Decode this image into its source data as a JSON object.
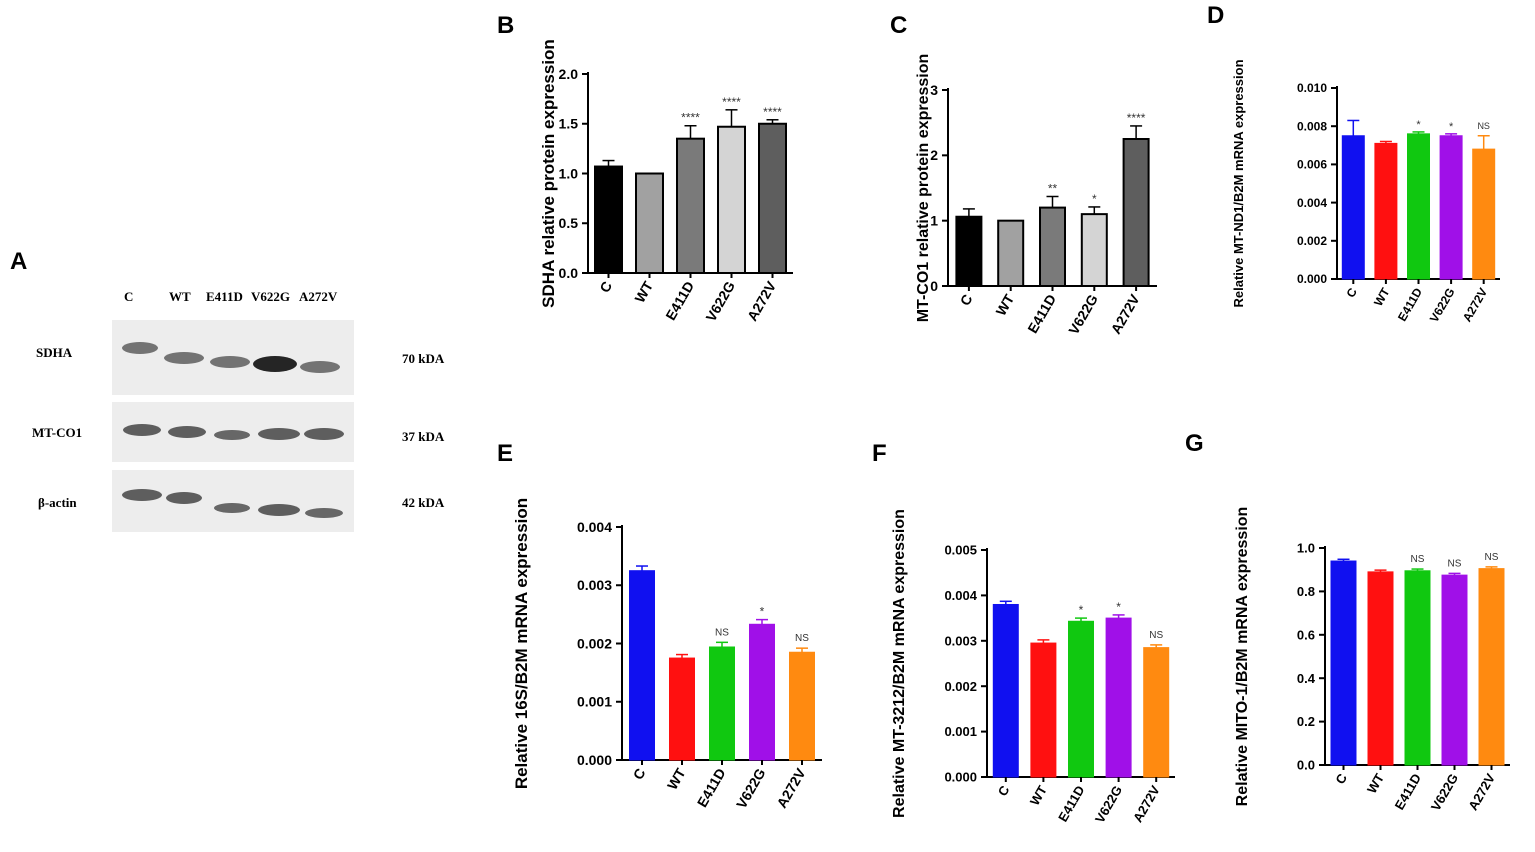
{
  "panels": {
    "A": "A",
    "B": "B",
    "C": "C",
    "D": "D",
    "E": "E",
    "F": "F",
    "G": "G"
  },
  "western_blot": {
    "lanes": [
      "C",
      "WT",
      "E411D",
      "V622G",
      "A272V"
    ],
    "proteins": [
      {
        "name": "SDHA",
        "size": "70 kDA",
        "intensities": [
          0.55,
          0.55,
          0.6,
          0.9,
          0.62
        ]
      },
      {
        "name": "MT-CO1",
        "size": "37 kDA",
        "intensities": [
          0.65,
          0.6,
          0.55,
          0.62,
          0.6
        ]
      },
      {
        "name": "β-actin",
        "size": "42 kDA",
        "intensities": [
          0.6,
          0.65,
          0.5,
          0.55,
          0.52
        ]
      }
    ]
  },
  "chart_data": [
    {
      "id": "B",
      "type": "bar",
      "ylabel": "SDHA relative protein expression",
      "categories": [
        "C",
        "WT",
        "E411D",
        "V622G",
        "A272V"
      ],
      "values": [
        1.07,
        1.0,
        1.35,
        1.47,
        1.5
      ],
      "errors": [
        0.06,
        0.0,
        0.13,
        0.17,
        0.04
      ],
      "annotations": [
        "",
        "",
        "****",
        "****",
        "****"
      ],
      "ylim": [
        0,
        2.0
      ],
      "ticks": [
        0,
        0.5,
        1.0,
        1.5,
        2.0
      ],
      "tick_labels": [
        "0.0",
        "0.5",
        "1.0",
        "1.5",
        "2.0"
      ],
      "colors": [
        "#000000",
        "#a1a1a1",
        "#7a7a7a",
        "#d4d4d4",
        "#5e5e5e"
      ]
    },
    {
      "id": "C",
      "type": "bar",
      "ylabel": "MT-CO1 relative protein expression",
      "categories": [
        "C",
        "WT",
        "E411D",
        "V622G",
        "A272V"
      ],
      "values": [
        1.06,
        1.0,
        1.2,
        1.1,
        2.25
      ],
      "errors": [
        0.12,
        0.0,
        0.17,
        0.11,
        0.2
      ],
      "annotations": [
        "",
        "",
        "**",
        "*",
        "****"
      ],
      "ylim": [
        0,
        3
      ],
      "ticks": [
        0,
        1,
        2,
        3
      ],
      "tick_labels": [
        "0",
        "1",
        "2",
        "3"
      ],
      "colors": [
        "#000000",
        "#a1a1a1",
        "#7a7a7a",
        "#d4d4d4",
        "#5e5e5e"
      ]
    },
    {
      "id": "D",
      "type": "bar",
      "ylabel": "Relative MT-ND1/B2M mRNA expression",
      "categories": [
        "C",
        "WT",
        "E411D",
        "V622G",
        "A272V"
      ],
      "values": [
        0.0075,
        0.0071,
        0.0076,
        0.0075,
        0.0068
      ],
      "errors": [
        0.0008,
        0.0001,
        0.0001,
        0.0001,
        0.0007
      ],
      "annotations": [
        "",
        "",
        "*",
        "*",
        "NS"
      ],
      "ylim": [
        0,
        0.01
      ],
      "ticks": [
        0,
        0.002,
        0.004,
        0.006,
        0.008,
        0.01
      ],
      "tick_labels": [
        "0.000",
        "0.002",
        "0.004",
        "0.006",
        "0.008",
        "0.010"
      ],
      "colors": [
        "#1010f0",
        "#ff1010",
        "#10c810",
        "#a010e8",
        "#ff8a10"
      ]
    },
    {
      "id": "E",
      "type": "bar",
      "ylabel": "Relative 16S/B2M mRNA expression",
      "categories": [
        "C",
        "WT",
        "E411D",
        "V622G",
        "A272V"
      ],
      "values": [
        0.00325,
        0.00175,
        0.00194,
        0.00233,
        0.00185
      ],
      "errors": [
        8e-05,
        6e-05,
        8e-05,
        8e-05,
        7e-05
      ],
      "annotations": [
        "",
        "",
        "NS",
        "*",
        "NS"
      ],
      "ylim": [
        0,
        0.004
      ],
      "ticks": [
        0,
        0.001,
        0.002,
        0.003,
        0.004
      ],
      "tick_labels": [
        "0.000",
        "0.001",
        "0.002",
        "0.003",
        "0.004"
      ],
      "colors": [
        "#1010f0",
        "#ff1010",
        "#10c810",
        "#a010e8",
        "#ff8a10"
      ]
    },
    {
      "id": "F",
      "type": "bar",
      "ylabel": "Relative MT-3212/B2M mRNA expression",
      "categories": [
        "C",
        "WT",
        "E411D",
        "V622G",
        "A272V"
      ],
      "values": [
        0.0038,
        0.00295,
        0.00343,
        0.0035,
        0.00285
      ],
      "errors": [
        7e-05,
        7e-05,
        7e-05,
        7e-05,
        6e-05
      ],
      "annotations": [
        "",
        "",
        "*",
        "*",
        "NS"
      ],
      "ylim": [
        0,
        0.005
      ],
      "ticks": [
        0,
        0.001,
        0.002,
        0.003,
        0.004,
        0.005
      ],
      "tick_labels": [
        "0.000",
        "0.001",
        "0.002",
        "0.003",
        "0.004",
        "0.005"
      ],
      "colors": [
        "#1010f0",
        "#ff1010",
        "#10c810",
        "#a010e8",
        "#ff8a10"
      ]
    },
    {
      "id": "G",
      "type": "bar",
      "ylabel": "Relative MITO-1/B2M mRNA expression",
      "categories": [
        "C",
        "WT",
        "E411D",
        "V622G",
        "A272V"
      ],
      "values": [
        0.94,
        0.89,
        0.895,
        0.875,
        0.905
      ],
      "errors": [
        0.008,
        0.008,
        0.008,
        0.008,
        0.008
      ],
      "annotations": [
        "",
        "",
        "NS",
        "NS",
        "NS"
      ],
      "ylim": [
        0,
        1.0
      ],
      "ticks": [
        0,
        0.2,
        0.4,
        0.6,
        0.8,
        1.0
      ],
      "tick_labels": [
        "0.0",
        "0.2",
        "0.4",
        "0.6",
        "0.8",
        "1.0"
      ],
      "colors": [
        "#1010f0",
        "#ff1010",
        "#10c810",
        "#a010e8",
        "#ff8a10"
      ]
    }
  ]
}
